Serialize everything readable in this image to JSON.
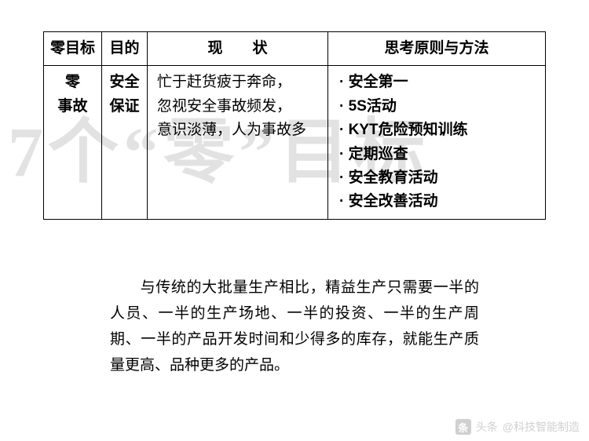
{
  "watermark": "7个“零”目标",
  "table": {
    "headers": [
      "零目标",
      "目的",
      "现　　状",
      "思考原则与方法"
    ],
    "row": {
      "target": "零\n事故",
      "purpose": "安全\n保证",
      "status": "忙于赶货疲于奔命，\n忽视安全事故频发，\n意识淡薄，人为事故多",
      "methods": [
        "安全第一",
        "5S活动",
        "KYT危险预知训练",
        "定期巡查",
        "安全教育活动",
        "安全改善活动"
      ]
    }
  },
  "paragraph": "与传统的大批量生产相比，精益生产只需要一半的人员、一半的生产场地、一半的投资、一半的生产周期、一半的产品开发时间和少得多的库存，就能生产质量更高、品种更多的产品。",
  "footer": {
    "prefix": "头条",
    "author": "@科技智能制造"
  }
}
